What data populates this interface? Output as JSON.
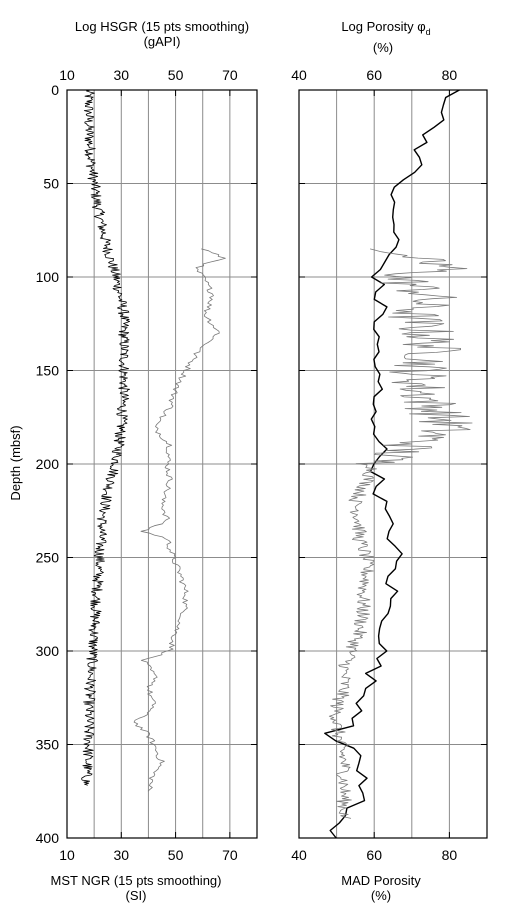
{
  "left_panel": {
    "top_title_line1": "Log HSGR (15 pts smoothing)",
    "top_title_line2": "(gAPI)",
    "bottom_title_line1": "MST NGR (15 pts smoothing)",
    "bottom_title_line2": "(SI)"
  },
  "right_panel": {
    "top_title_main": "Log Porosity φ",
    "top_title_sub": "d",
    "top_title_line2": "(%)",
    "bottom_title_line1": "MAD Porosity",
    "bottom_title_line2": "(%)"
  },
  "y_axis_label": "Depth (mbsf)",
  "chart_data": [
    {
      "type": "line",
      "panel": "left",
      "xlim": [
        10,
        80
      ],
      "x_ticks": [
        "10",
        "30",
        "50",
        "70"
      ],
      "ylim": [
        0,
        400
      ],
      "y_inverted": true,
      "y_ticks": [
        "0",
        "50",
        "100",
        "150",
        "200",
        "250",
        "300",
        "350",
        "400"
      ],
      "grid": true,
      "series": [
        {
          "style": "black, noisy",
          "depth": [
            0,
            20,
            40,
            60,
            80,
            100,
            120,
            140,
            160,
            180,
            200,
            215,
            230,
            250,
            270,
            290,
            310,
            330,
            350,
            372
          ],
          "values": [
            18,
            18,
            19,
            21,
            24,
            28,
            31,
            31,
            31,
            30,
            28,
            25,
            23,
            22,
            21,
            20,
            19,
            18,
            18,
            17
          ]
        },
        {
          "style": "gray, smooth",
          "depth": [
            85,
            90,
            95,
            100,
            110,
            120,
            130,
            140,
            150,
            160,
            170,
            180,
            190,
            200,
            210,
            220,
            230,
            236,
            240,
            250,
            260,
            270,
            280,
            290,
            300,
            305,
            315,
            320,
            330,
            338,
            345,
            350,
            360,
            365,
            375
          ],
          "values": [
            60,
            68,
            57,
            60,
            64,
            61,
            66,
            58,
            54,
            50,
            48,
            42,
            48,
            47,
            48,
            45,
            47,
            38,
            47,
            49,
            52,
            54,
            53,
            50,
            48,
            38,
            43,
            40,
            42,
            35,
            40,
            42,
            45,
            42,
            40
          ]
        }
      ]
    },
    {
      "type": "line",
      "panel": "right",
      "xlim": [
        40,
        90
      ],
      "x_ticks": [
        "40",
        "60",
        "80"
      ],
      "ylim": [
        0,
        400
      ],
      "y_inverted": true,
      "grid": true,
      "series": [
        {
          "style": "black, log porosity",
          "depth": [
            0,
            10,
            20,
            30,
            40,
            50,
            60,
            70,
            80,
            90,
            100,
            110,
            120,
            130,
            140,
            150,
            160,
            170,
            180,
            190,
            200,
            210,
            220,
            230,
            240,
            250,
            260,
            270,
            280,
            290,
            300,
            310,
            320,
            330,
            340,
            345,
            350,
            360,
            370,
            380,
            390,
            400
          ],
          "values": [
            82,
            79,
            76,
            73,
            71,
            67,
            64,
            65,
            66,
            63,
            61,
            61,
            62,
            60,
            61,
            60,
            61,
            59,
            61,
            62,
            61,
            61,
            62,
            63,
            65,
            66,
            64,
            65,
            63,
            63,
            62,
            60,
            58,
            57,
            55,
            47,
            54,
            55,
            58,
            56,
            50,
            50
          ]
        },
        {
          "style": "gray, MAD porosity",
          "depth": [
            85,
            95,
            100,
            110,
            120,
            130,
            140,
            150,
            160,
            170,
            180,
            190,
            200,
            210,
            220,
            230,
            240,
            250,
            260,
            270,
            280,
            290,
            300,
            310,
            320,
            330,
            340,
            350,
            360,
            370,
            380,
            390
          ],
          "values": [
            60,
            80,
            66,
            75,
            70,
            74,
            76,
            72,
            72,
            76,
            80,
            70,
            60,
            58,
            55,
            56,
            56,
            58,
            58,
            57,
            57,
            56,
            54,
            52,
            52,
            50,
            50,
            51,
            52,
            52,
            52,
            52
          ]
        }
      ]
    }
  ]
}
